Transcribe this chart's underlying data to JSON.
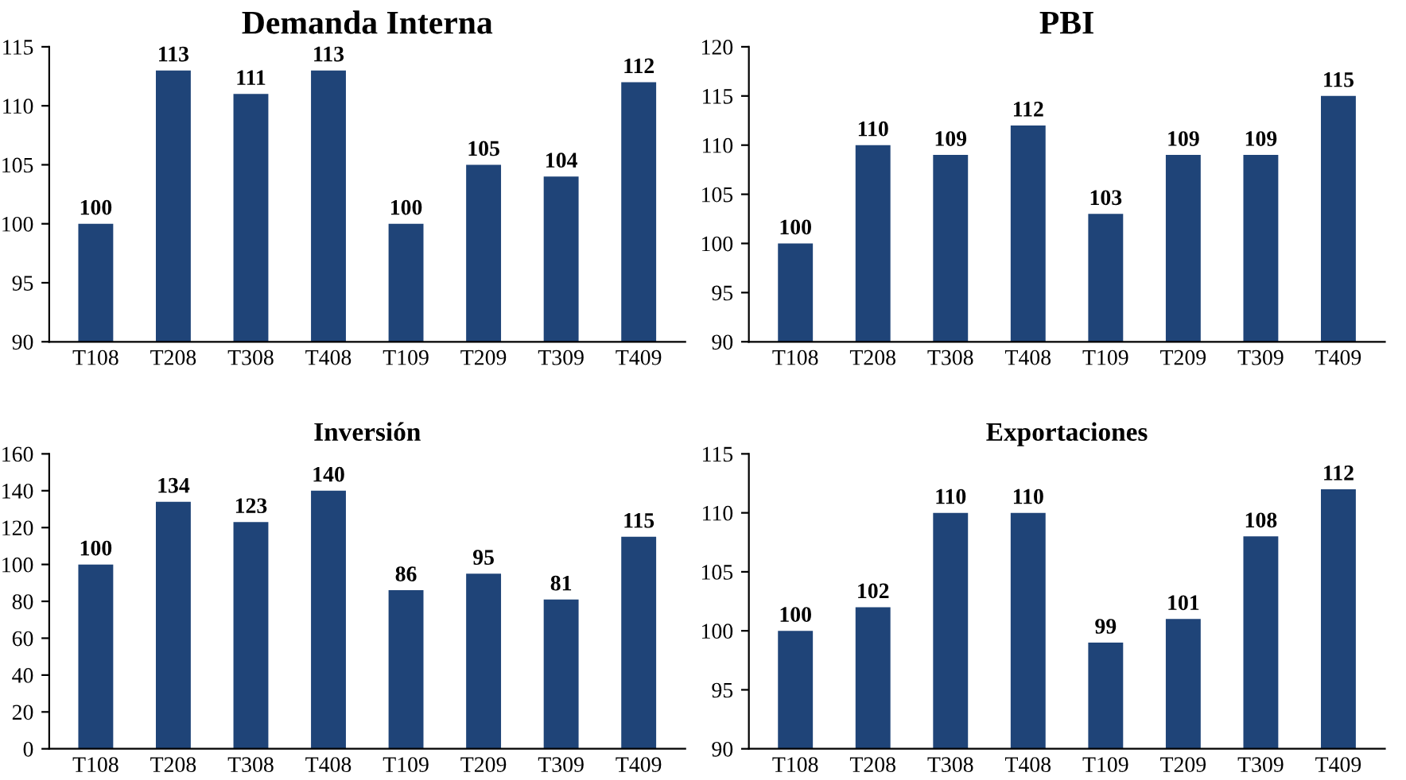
{
  "chart_data": [
    {
      "type": "bar",
      "title": "Demanda Interna",
      "categories": [
        "T108",
        "T208",
        "T308",
        "T408",
        "T109",
        "T209",
        "T309",
        "T409"
      ],
      "values": [
        100,
        113,
        111,
        113,
        100,
        105,
        104,
        112
      ],
      "color": "#1f4478",
      "ylim": [
        90,
        115
      ],
      "yticks": [
        90,
        95,
        100,
        105,
        110,
        115
      ],
      "data_labels": true,
      "grid": false
    },
    {
      "type": "bar",
      "title": "PBI",
      "categories": [
        "T108",
        "T208",
        "T308",
        "T408",
        "T109",
        "T209",
        "T309",
        "T409"
      ],
      "values": [
        100,
        110,
        109,
        112,
        103,
        109,
        109,
        115
      ],
      "color": "#1f4478",
      "ylim": [
        90,
        120
      ],
      "yticks": [
        90,
        95,
        100,
        105,
        110,
        115,
        120
      ],
      "data_labels": true,
      "grid": false
    },
    {
      "type": "bar",
      "title": "Inversión",
      "categories": [
        "T108",
        "T208",
        "T308",
        "T408",
        "T109",
        "T209",
        "T309",
        "T409"
      ],
      "values": [
        100,
        134,
        123,
        140,
        86,
        95,
        81,
        115
      ],
      "color": "#1f4478",
      "ylim": [
        0,
        160
      ],
      "yticks": [
        0,
        20,
        40,
        60,
        80,
        100,
        120,
        140,
        160
      ],
      "data_labels": true,
      "grid": false
    },
    {
      "type": "bar",
      "title": "Exportaciones",
      "categories": [
        "T108",
        "T208",
        "T308",
        "T408",
        "T109",
        "T209",
        "T309",
        "T409"
      ],
      "values": [
        100,
        102,
        110,
        110,
        99,
        101,
        108,
        112
      ],
      "color": "#1f4478",
      "ylim": [
        90,
        115
      ],
      "yticks": [
        90,
        95,
        100,
        105,
        110,
        115
      ],
      "data_labels": true,
      "grid": false
    }
  ]
}
